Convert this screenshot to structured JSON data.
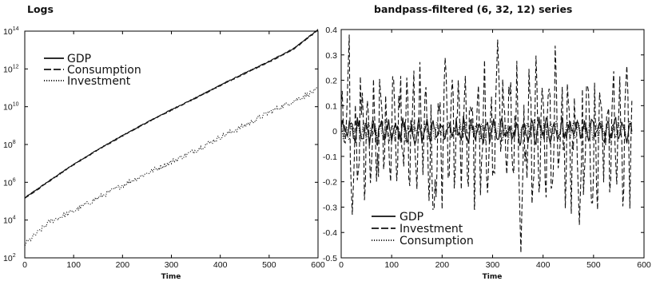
{
  "chart_data": [
    {
      "type": "line",
      "title": "Logs",
      "xlabel": "Time",
      "ylabel": "",
      "yscale": "log",
      "xlim": [
        0,
        600
      ],
      "ylim": [
        100,
        100000000000000
      ],
      "xticks": [
        0,
        100,
        200,
        300,
        400,
        500,
        600
      ],
      "yticks": [
        {
          "base": "10",
          "exp": "2",
          "value": 100
        },
        {
          "base": "10",
          "exp": "4",
          "value": 10000
        },
        {
          "base": "10",
          "exp": "6",
          "value": 1000000
        },
        {
          "base": "10",
          "exp": "8",
          "value": 100000000
        },
        {
          "base": "10",
          "exp": "10",
          "value": 10000000000
        },
        {
          "base": "10",
          "exp": "12",
          "value": 1000000000000
        },
        {
          "base": "10",
          "exp": "14",
          "value": 100000000000000
        }
      ],
      "legend_position": "upper-left",
      "series": [
        {
          "name": "GDP",
          "style": "solid",
          "x": [
            0,
            50,
            100,
            150,
            200,
            250,
            300,
            350,
            400,
            450,
            500,
            550,
            600
          ],
          "y": [
            150000,
            1200000,
            9000000,
            55000000,
            300000000,
            1500000000,
            7000000000,
            30000000000,
            140000000000,
            600000000000,
            2500000000000,
            12000000000000,
            120000000000000
          ]
        },
        {
          "name": "Consumption",
          "style": "dashed",
          "x": [
            0,
            50,
            100,
            150,
            200,
            250,
            300,
            350,
            400,
            450,
            500,
            550,
            600
          ],
          "y": [
            140000,
            1100000,
            8500000,
            52000000,
            280000000,
            1400000000,
            6500000000,
            28000000000,
            130000000000,
            550000000000,
            2300000000000,
            11000000000000,
            110000000000000
          ]
        },
        {
          "name": "Investment",
          "style": "dotted",
          "x": [
            0,
            50,
            100,
            150,
            200,
            250,
            300,
            350,
            400,
            450,
            500,
            550,
            600
          ],
          "y": [
            500,
            8000,
            30000,
            150000,
            700000,
            3000000,
            12000000,
            50000000,
            250000000,
            1000000000,
            5000000000,
            20000000000,
            80000000000
          ]
        }
      ]
    },
    {
      "type": "line",
      "title": "bandpass-filtered (6, 32, 12) series",
      "xlabel": "Time",
      "ylabel": "",
      "xlim": [
        0,
        600
      ],
      "ylim": [
        -0.5,
        0.4
      ],
      "xticks": [
        0,
        100,
        200,
        300,
        400,
        500,
        600
      ],
      "yticks": [
        0.4,
        0.3,
        0.2,
        0.1,
        0,
        -0.1,
        -0.2,
        -0.3,
        -0.4,
        -0.5
      ],
      "legend_position": "lower-left",
      "series_x_range": [
        0,
        576
      ],
      "series": [
        {
          "name": "GDP",
          "style": "solid",
          "amplitude": 0.05
        },
        {
          "name": "Investment",
          "style": "dashed",
          "amplitude": 0.27,
          "peaks": [
            [
              16,
              0.38
            ],
            [
              22,
              -0.33
            ],
            [
              183,
              -0.38
            ],
            [
              310,
              0.36
            ],
            [
              356,
              -0.48
            ],
            [
              472,
              -0.37
            ],
            [
              497,
              -0.34
            ]
          ]
        },
        {
          "name": "Consumption",
          "style": "dotted",
          "amplitude": 0.04
        }
      ]
    }
  ]
}
